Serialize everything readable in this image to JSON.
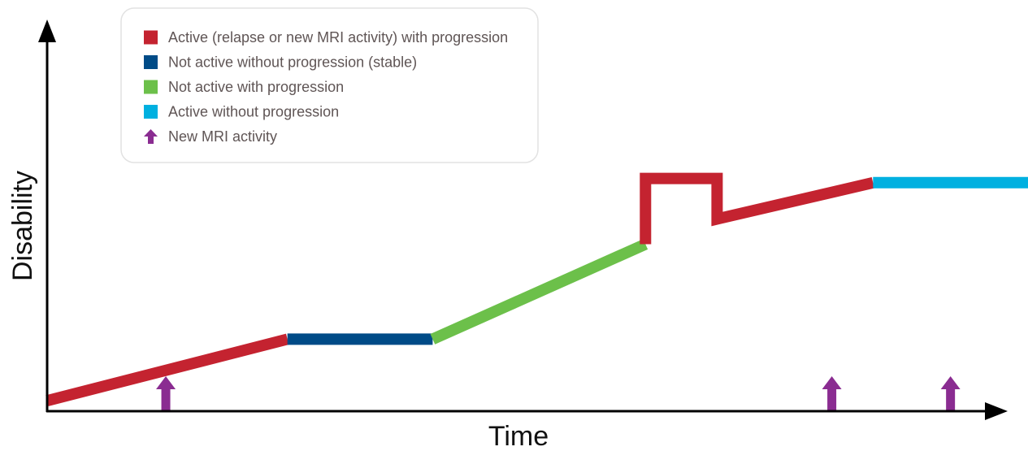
{
  "chart_data": {
    "type": "line",
    "xlabel": "Time",
    "ylabel": "Disability",
    "xlim": [
      0,
      100
    ],
    "ylim": [
      0,
      100
    ],
    "grid": false,
    "legend_placement": "top-left",
    "legend": [
      {
        "label": "Active (relapse or new MRI activity) with progression",
        "color": "#c42330",
        "marker": "square"
      },
      {
        "label": "Not active without progression (stable)",
        "color": "#004b87",
        "marker": "square"
      },
      {
        "label": "Not active with progression",
        "color": "#6cc04a",
        "marker": "square"
      },
      {
        "label": "Active without progression",
        "color": "#00b0e0",
        "marker": "square"
      },
      {
        "label": "New MRI activity",
        "color": "#8a2c91",
        "marker": "arrow-up"
      }
    ],
    "segments": [
      {
        "status": "active_with_progression",
        "color": "#c42330",
        "points": [
          [
            0,
            2
          ],
          [
            24.5,
            24
          ]
        ]
      },
      {
        "status": "not_active_stable",
        "color": "#004b87",
        "points": [
          [
            24.5,
            24
          ],
          [
            39.3,
            24
          ]
        ]
      },
      {
        "status": "not_active_with_progression",
        "color": "#6cc04a",
        "points": [
          [
            39.3,
            24
          ],
          [
            61,
            58
          ]
        ]
      },
      {
        "status": "active_with_progression",
        "color": "#c42330",
        "points": [
          [
            61,
            58
          ],
          [
            61,
            81.5
          ],
          [
            68.3,
            81.5
          ],
          [
            68.3,
            67
          ],
          [
            84.2,
            80
          ]
        ]
      },
      {
        "status": "active_without_progression",
        "color": "#00b0e0",
        "points": [
          [
            84.2,
            80
          ],
          [
            100,
            80
          ]
        ]
      }
    ],
    "mri_events": [
      12.1,
      80,
      92.1
    ]
  }
}
